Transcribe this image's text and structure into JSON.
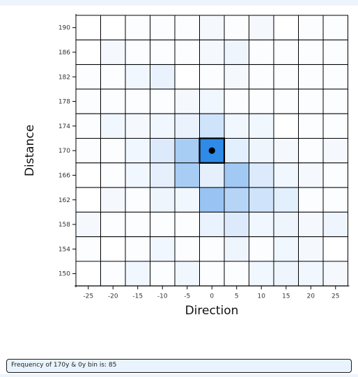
{
  "chart_data": {
    "type": "heatmap",
    "xlabel": "Direction",
    "ylabel": "Distance",
    "x_ticks": [
      -25,
      -20,
      -15,
      -10,
      -5,
      0,
      5,
      10,
      15,
      20,
      25
    ],
    "y_ticks": [
      190,
      186,
      182,
      178,
      174,
      170,
      166,
      162,
      158,
      154,
      150
    ],
    "cell_colors": [
      [
        "#ffffff",
        "#ffffff",
        "#fbfdff",
        "#fbfdff",
        "#fbfdff",
        "#f5f9fe",
        "#fbfdff",
        "#f5f9fe",
        "#ffffff",
        "#fbfdff",
        "#fbfdff"
      ],
      [
        "#ffffff",
        "#f5f9fe",
        "#fbfdff",
        "#fbfdff",
        "#fbfdff",
        "#f5f9fe",
        "#eef5fd",
        "#fbfdff",
        "#fbfdff",
        "#fbfdff",
        "#fbfdff"
      ],
      [
        "#fbfdff",
        "#fbfdff",
        "#f1f7fe",
        "#eaf3fd",
        "#ffffff",
        "#fbfdff",
        "#f5f9fe",
        "#fbfdff",
        "#fbfdff",
        "#fbfdff",
        "#fbfdff"
      ],
      [
        "#fbfdff",
        "#fbfdff",
        "#fbfdff",
        "#fbfdff",
        "#f5f9fe",
        "#f1f7fe",
        "#fbfdff",
        "#fbfdff",
        "#fbfdff",
        "#fbfdff",
        "#fbfdff"
      ],
      [
        "#fbfdff",
        "#f1f7fe",
        "#f5f9fe",
        "#f1f7fe",
        "#eaf3fd",
        "#cfe4fa",
        "#f1f7fe",
        "#f1f7fe",
        "#ffffff",
        "#fbfdff",
        "#fbfdff"
      ],
      [
        "#fbfdff",
        "#fbfdff",
        "#f1f7fe",
        "#dceafb",
        "#a8cdf5",
        "#2f8be6",
        "#e2effc",
        "#eef5fd",
        "#f5f9fe",
        "#fbfdff",
        "#f5f9fe"
      ],
      [
        "#ffffff",
        "#fbfdff",
        "#f1f7fe",
        "#e6f0fc",
        "#a8cdf5",
        "#e6f0fc",
        "#a1c9f4",
        "#dceafb",
        "#f1f7fe",
        "#f5f9fe",
        "#fbfdff"
      ],
      [
        "#ffffff",
        "#f5f9fe",
        "#fbfdff",
        "#eef5fd",
        "#f1f7fe",
        "#98c3f3",
        "#b5d4f6",
        "#cfe4fa",
        "#e2effc",
        "#fbfdff",
        "#fbfdff"
      ],
      [
        "#f5f9fe",
        "#fbfdff",
        "#fbfdff",
        "#fbfdff",
        "#fbfdff",
        "#eaf3fd",
        "#dceafb",
        "#f1f7fe",
        "#eef5fd",
        "#f5f9fe",
        "#eef5fd"
      ],
      [
        "#fbfdff",
        "#ffffff",
        "#fbfdff",
        "#f1f7fe",
        "#fbfdff",
        "#fbfdff",
        "#eef5fd",
        "#fbfdff",
        "#f1f7fe",
        "#f5f9fe",
        "#ffffff"
      ],
      [
        "#ffffff",
        "#fbfdff",
        "#f1f7fe",
        "#fbfdff",
        "#f1f7fe",
        "#fbfdff",
        "#fbfdff",
        "#f1f7fe",
        "#eef5fd",
        "#f1f7fe",
        "#f5f9fe"
      ]
    ],
    "selected_cell": {
      "x": 0,
      "y": 170
    },
    "grid": true,
    "legend": "none"
  },
  "status": {
    "text": "Frequency of 170y & 0y bin is: 85"
  }
}
